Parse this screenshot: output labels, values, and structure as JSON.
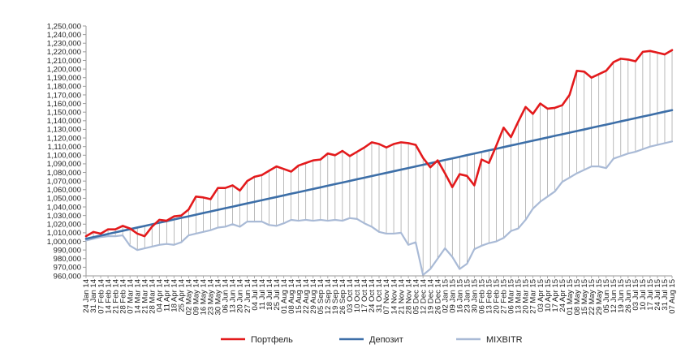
{
  "chart_data": {
    "type": "line",
    "title": "",
    "xlabel": "",
    "ylabel": "",
    "ylim": [
      960000,
      1250000
    ],
    "y_step": 10000,
    "grid": "vertical drop lines between series",
    "legend_position": "bottom",
    "x": [
      "24 Jan 14",
      "31 Jan 14",
      "07 Feb 14",
      "14 Feb 14",
      "21 Feb 14",
      "28 Feb 14",
      "07 Mar 14",
      "14 Mar 14",
      "21 Mar 14",
      "28 Mar 14",
      "04 Apr 14",
      "11 Apr 14",
      "18 Apr 14",
      "25 Apr 14",
      "02 May 14",
      "09 May 14",
      "16 May 14",
      "23 May 14",
      "30 May 14",
      "06 Jun 14",
      "13 Jun 14",
      "20 Jun 14",
      "27 Jun 14",
      "04 Jul 14",
      "11 Jul 14",
      "18 Jul 14",
      "25 Jul 14",
      "01 Aug 14",
      "08 Aug 14",
      "15 Aug 14",
      "22 Aug 14",
      "29 Aug 14",
      "05 Sep 14",
      "12 Sep 14",
      "19 Sep 14",
      "26 Sep 14",
      "03 Oct 14",
      "10 Oct 14",
      "17 Oct 14",
      "24 Oct 14",
      "31 Oct 14",
      "07 Nov 14",
      "14 Nov 14",
      "21 Nov 14",
      "28 Nov 14",
      "05 Dec 14",
      "12 Dec 14",
      "19 Dec 14",
      "26 Dec 14",
      "02 Jan 15",
      "09 Jan 15",
      "16 Jan 15",
      "23 Jan 15",
      "30 Jan 15",
      "06 Feb 15",
      "13 Feb 15",
      "20 Feb 15",
      "27 Feb 15",
      "06 Mar 15",
      "13 Mar 15",
      "20 Mar 15",
      "27 Mar 15",
      "03 Apr 15",
      "10 Apr 15",
      "17 Apr 15",
      "24 Apr 15",
      "01 May 15",
      "08 May 15",
      "15 May 15",
      "22 May 15",
      "29 May 15",
      "05 Jun 15",
      "12 Jun 15",
      "19 Jun 15",
      "26 Jun 15",
      "03 Jul 15",
      "10 Jul 15",
      "17 Jul 15",
      "24 Jul 15",
      "31 Jul 15",
      "07 Aug 15"
    ],
    "series": [
      {
        "name": "Портфель",
        "color": "#e31a1c",
        "width": 2.6,
        "values": [
          1006000,
          1011000,
          1009000,
          1014000,
          1014000,
          1018000,
          1015000,
          1009000,
          1006000,
          1017000,
          1025000,
          1024000,
          1029000,
          1030000,
          1037000,
          1052000,
          1051000,
          1049000,
          1062000,
          1062000,
          1065000,
          1059000,
          1070000,
          1075000,
          1077000,
          1082000,
          1087000,
          1084000,
          1081000,
          1088000,
          1091000,
          1094000,
          1095000,
          1102000,
          1100000,
          1105000,
          1099000,
          1104000,
          1109000,
          1115000,
          1113000,
          1109000,
          1113000,
          1115000,
          1114000,
          1112000,
          1097000,
          1086000,
          1094000,
          1079000,
          1063000,
          1078000,
          1076000,
          1065000,
          1095000,
          1091000,
          1111000,
          1132000,
          1121000,
          1139000,
          1156000,
          1148000,
          1160000,
          1154000,
          1155000,
          1158000,
          1170000,
          1198000,
          1197000,
          1190000,
          1194000,
          1198000,
          1208000,
          1212000,
          1211000,
          1209000,
          1220000,
          1221000,
          1219000,
          1217000,
          1222000
        ]
      },
      {
        "name": "Депозит",
        "color": "#3d6fa8",
        "width": 2.6,
        "values": [
          1003000,
          1004900,
          1006700,
          1008600,
          1010500,
          1012300,
          1014200,
          1016100,
          1017900,
          1019800,
          1021700,
          1023500,
          1025400,
          1027300,
          1029100,
          1031000,
          1032900,
          1034700,
          1036600,
          1038500,
          1040300,
          1042200,
          1044100,
          1045900,
          1047800,
          1049700,
          1051500,
          1053400,
          1055300,
          1057100,
          1059000,
          1060900,
          1062700,
          1064600,
          1066500,
          1068300,
          1070200,
          1072100,
          1073900,
          1075800,
          1077700,
          1079500,
          1081400,
          1083300,
          1085100,
          1087000,
          1088900,
          1090700,
          1092600,
          1094500,
          1096300,
          1098200,
          1100100,
          1101900,
          1103800,
          1105700,
          1107500,
          1109400,
          1111300,
          1113100,
          1115000,
          1116900,
          1118700,
          1120600,
          1122500,
          1124300,
          1126200,
          1128100,
          1129900,
          1131800,
          1133700,
          1135500,
          1137400,
          1139300,
          1141100,
          1143000,
          1144900,
          1146700,
          1148600,
          1150500,
          1152300
        ]
      },
      {
        "name": "MIXBITR",
        "color": "#a9bad6",
        "width": 2.2,
        "values": [
          1001000,
          1003000,
          1005000,
          1006000,
          1006000,
          1007000,
          995000,
          990000,
          992000,
          994000,
          996000,
          997000,
          996000,
          999000,
          1007000,
          1009000,
          1011000,
          1013000,
          1016000,
          1017000,
          1020000,
          1017000,
          1023000,
          1023000,
          1023000,
          1019000,
          1018000,
          1021000,
          1025000,
          1024000,
          1025000,
          1024000,
          1025000,
          1024000,
          1025000,
          1024000,
          1027000,
          1026000,
          1021000,
          1017000,
          1011000,
          1009000,
          1009000,
          1010000,
          996000,
          999000,
          961000,
          968000,
          980000,
          992000,
          982000,
          968000,
          974000,
          991000,
          995000,
          998000,
          1000000,
          1004000,
          1012000,
          1015000,
          1025000,
          1038000,
          1046000,
          1052000,
          1058000,
          1069000,
          1074000,
          1079000,
          1083000,
          1087000,
          1087000,
          1085000,
          1096000,
          1099000,
          1102000,
          1104000,
          1107000,
          1110000,
          1112000,
          1114000,
          1116000
        ]
      }
    ]
  }
}
